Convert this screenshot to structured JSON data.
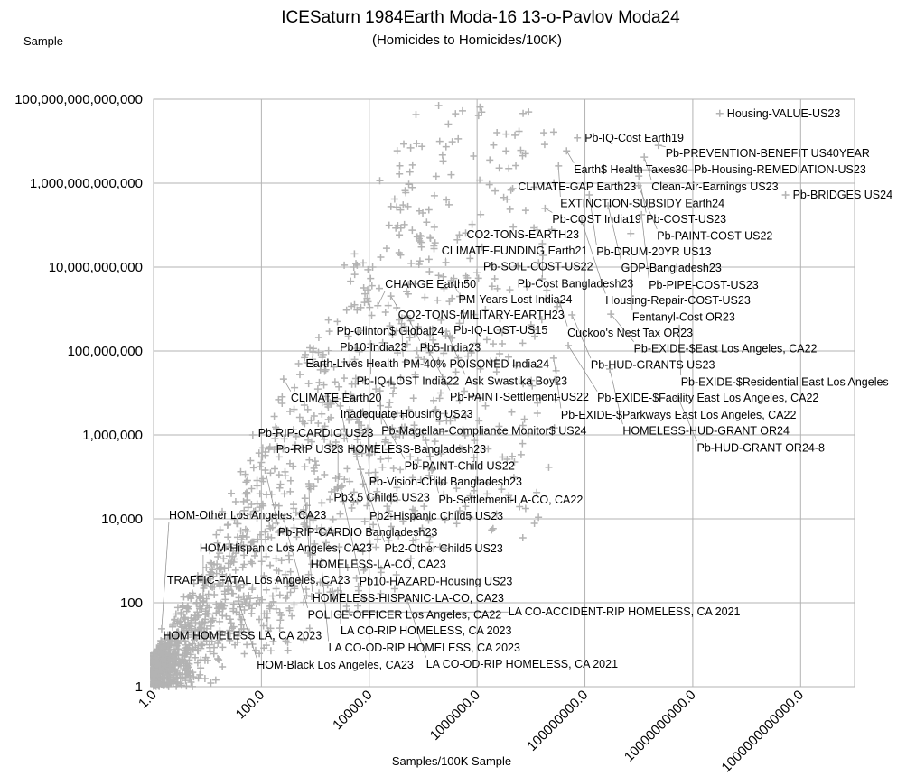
{
  "chart_data": {
    "type": "scatter",
    "title": "ICESaturn 1984Earth Moda-16 13-o-Pavlov Moda24",
    "subtitle": "(Homicides to Homicides/100K)",
    "xlabel": "Samples/100K Sample",
    "ylabel": "Sample",
    "x_scale": "log",
    "y_scale": "log",
    "xlim": [
      1,
      10000000000000
    ],
    "ylim": [
      1,
      100000000000000
    ],
    "grid": true,
    "marker": "cross",
    "marker_color": "#b3b3b3",
    "x_ticks": [
      {
        "value": 1,
        "label": "1.0"
      },
      {
        "value": 100,
        "label": "100.0"
      },
      {
        "value": 10000,
        "label": "10000.0"
      },
      {
        "value": 1000000,
        "label": "1000000.0"
      },
      {
        "value": 100000000,
        "label": "100000000.0"
      },
      {
        "value": 10000000000,
        "label": "10000000000.0"
      },
      {
        "value": 1000000000000,
        "label": "1000000000000.0"
      }
    ],
    "y_ticks": [
      {
        "value": 1,
        "label": "1"
      },
      {
        "value": 100,
        "label": "100"
      },
      {
        "value": 10000,
        "label": "10,000"
      },
      {
        "value": 1000000,
        "label": "1,000,000"
      },
      {
        "value": 100000000,
        "label": "100,000,000"
      },
      {
        "value": 10000000000,
        "label": "10,000,000,000"
      },
      {
        "value": 1000000000000,
        "label": "1,000,000,000,000"
      },
      {
        "value": 100000000000000,
        "label": "100,000,000,000,000"
      }
    ],
    "labeled_points": [
      {
        "label": "Housing-VALUE-US23",
        "log10x": 10.5,
        "log10y": 13.66
      },
      {
        "label": "Pb-IQ-Cost Earth19",
        "log10x": 7.86,
        "log10y": 13.08
      },
      {
        "label": "Pb-PREVENTION-BENEFIT US40YEAR",
        "log10x": 9.36,
        "log10y": 12.9
      },
      {
        "label": "Earth$ Health Taxes30",
        "log10x": 7.66,
        "log10y": 12.77
      },
      {
        "label": "Clean-Air-Earnings US23",
        "log10x": 9.1,
        "log10y": 12.62
      },
      {
        "label": "EXTINCTION-SUBSIDY Earth24",
        "log10x": 7.51,
        "log10y": 12.41
      },
      {
        "label": "Pb-Housing-REMEDIATION-US23",
        "log10x": 8.98,
        "log10y": 12.32
      },
      {
        "label": "Pb-COST-US23",
        "log10x": 9.0,
        "log10y": 12.17
      },
      {
        "label": "Pb-PAINT-COST US22",
        "log10x": 8.99,
        "log10y": 11.94
      },
      {
        "label": "CLIMATE-GAP Earth23",
        "log10x": 6.66,
        "log10y": 11.87
      },
      {
        "label": "Pb-DRUM-20YR US13",
        "log10x": 8.08,
        "log10y": 11.72
      },
      {
        "label": "Pb-BRIDGES US24",
        "log10x": 11.72,
        "log10y": 11.72
      },
      {
        "label": "GDP-Bangladesh23",
        "log10x": 8.43,
        "log10y": 11.46
      },
      {
        "label": "Pb-COST India19",
        "log10x": 7.26,
        "log10y": 11.4
      },
      {
        "label": "Pb-PIPE-COST-US23",
        "log10x": 9.05,
        "log10y": 11.25
      },
      {
        "label": "Housing-Repair-COST-US23",
        "log10x": 7.94,
        "log10y": 11.1
      },
      {
        "label": "Fentanyl-Cost OR23",
        "log10x": 8.85,
        "log10y": 10.8
      },
      {
        "label": "CO2-TONS-EARTH23",
        "log10x": 5.67,
        "log10y": 10.77
      },
      {
        "label": "Pb-Cost Bangladesh23",
        "log10x": 7.21,
        "log10y": 10.56
      },
      {
        "label": "Pb-SOIL-COST-US22",
        "log10x": 7.22,
        "log10y": 10.28
      },
      {
        "label": "CLIMATE-FUNDING Earth21",
        "log10x": 5.42,
        "log10y": 10.11
      },
      {
        "label": "PM-Years Lost India24",
        "log10x": 5.52,
        "log10y": 9.68
      },
      {
        "label": "CO2-TONS-MILITARY-EARTH23",
        "log10x": 4.4,
        "log10y": 9.31
      },
      {
        "label": "Cuckoo's Nest Tax OR23",
        "log10x": 7.54,
        "log10y": 9.14
      },
      {
        "label": "CHANGE Earth50",
        "log10x": 4.16,
        "log10y": 9.08
      },
      {
        "label": "Pb-IQ-LOST-US15",
        "log10x": 5.75,
        "log10y": 8.9
      },
      {
        "label": "Pb-EXIDE-$East Los Angeles, CA22",
        "log10x": 8.48,
        "log10y": 8.88
      },
      {
        "label": "Pb-HUD-GRANTS US23",
        "log10x": 7.76,
        "log10y": 8.86
      },
      {
        "label": "Pb5-India23",
        "log10x": 4.7,
        "log10y": 8.84
      },
      {
        "label": "PM-40% POISONED India24",
        "log10x": 4.6,
        "log10y": 8.65
      },
      {
        "label": "Pb-EXIDE-$Residential East Los Angeles",
        "log10x": 9.75,
        "log10y": 8.54
      },
      {
        "label": "Pb-Clinton$ Global24",
        "log10x": 3.26,
        "log10y": 8.47
      },
      {
        "label": "Ask Swastika Boy23",
        "log10x": 5.43,
        "log10y": 8.47
      },
      {
        "label": "Pb-IQ-LOST India22",
        "log10x": 4.03,
        "log10y": 8.17
      },
      {
        "label": "Pb-PAINT-Settlement-US22",
        "log10x": 5.05,
        "log10y": 8.13
      },
      {
        "label": "Pb-EXIDE-$Facility East Los Angeles, CA22",
        "log10x": 7.69,
        "log10y": 8.13
      },
      {
        "label": "Pb-EXIDE-$Parkways East Los Angeles, CA22",
        "log10x": 7.42,
        "log10y": 7.83
      },
      {
        "label": "Earth-Lives Health",
        "log10x": 2.69,
        "log10y": 7.7
      },
      {
        "label": "Pb10-India23",
        "log10x": 3.64,
        "log10y": 7.68
      },
      {
        "label": "HOMELESS-HUD-GRANT OR24",
        "log10x": 8.46,
        "log10y": 7.57
      },
      {
        "label": "CLIMATE Earth20",
        "log10x": 2.41,
        "log10y": 7.33
      },
      {
        "label": "Pb-Magellan-Compliance Monitor$ US24",
        "log10x": 4.2,
        "log10y": 7.05
      },
      {
        "label": "Pb-HUD-GRANT OR24-8",
        "log10x": 9.73,
        "log10y": 6.88
      },
      {
        "label": "Inadequate Housing US23",
        "log10x": 3.33,
        "log10y": 6.82
      },
      {
        "label": "HOMELESS-Bangladesh23",
        "log10x": 3.46,
        "log10y": 6.69
      },
      {
        "label": "Pb-PAINT-Child US22",
        "log10x": 4.21,
        "log10y": 6.49
      },
      {
        "label": "Pb-Vision-Child Bangladesh23",
        "log10x": 3.97,
        "log10y": 6.16
      },
      {
        "label": "Pb-RIP-CARDIO US23",
        "log10x": 1.84,
        "log10y": 6.0
      },
      {
        "label": "Pb-Settlement-LA-CO, CA22",
        "log10x": 5.05,
        "log10y": 5.87
      },
      {
        "label": "Pb-RIP US23",
        "log10x": 2.14,
        "log10y": 5.66
      },
      {
        "label": "Pb3.5 Child5 US23",
        "log10x": 3.42,
        "log10y": 5.7
      },
      {
        "label": "Pb2-Hispanic Child5 US23",
        "log10x": 3.77,
        "log10y": 5.48
      },
      {
        "label": "Pb-RIP-CARDIO Bangladesh23",
        "log10x": 2.07,
        "log10y": 5.16
      },
      {
        "label": "Pb2-Other Child5 US23",
        "log10x": 3.84,
        "log10y": 5.18
      },
      {
        "label": "HOMELESS-LA-CO, CA23",
        "log10x": 2.88,
        "log10y": 4.84
      },
      {
        "label": "Pb10-HAZARD-Housing US23",
        "log10x": 3.47,
        "log10y": 4.75
      },
      {
        "label": "HOMELESS-HISPANIC-LA-CO, CA23",
        "log10x": 2.81,
        "log10y": 4.49
      },
      {
        "label": "POLICE-OFFICER Los Angeles, CA22",
        "log10x": 2.41,
        "log10y": 4.0
      },
      {
        "label": "LA CO-RIP HOMELESS, CA 2023",
        "log10x": 3.44,
        "log10y": 3.33
      },
      {
        "label": "LA CO-OD-RIP HOMELESS, CA 2023",
        "log10x": 3.11,
        "log10y": 2.99
      },
      {
        "label": "TRAFFIC-FATAL Los Angeles, CA23",
        "log10x": 0.92,
        "log10y": 2.54
      },
      {
        "label": "HOM-Hispanic Los Angeles, CA23",
        "log10x": 0.92,
        "log10y": 2.17
      },
      {
        "label": "LA CO-OD-RIP HOMELESS, CA 2021",
        "log10x": 4.71,
        "log10y": 2.06
      },
      {
        "label": "HOM-Black Los Angeles, CA23",
        "log10x": 1.57,
        "log10y": 2.04
      },
      {
        "label": "LA CO-ACCIDENT-RIP HOMELESS, CA 2021",
        "log10x": 3.63,
        "log10y": 1.78
      },
      {
        "label": "HOM HOMELESS LA, CA 2023",
        "log10x": 2.11,
        "log10y": 1.74
      },
      {
        "label": "HOM-Other Los Angeles, CA23",
        "log10x": 0.15,
        "log10y": 1.38
      }
    ]
  }
}
